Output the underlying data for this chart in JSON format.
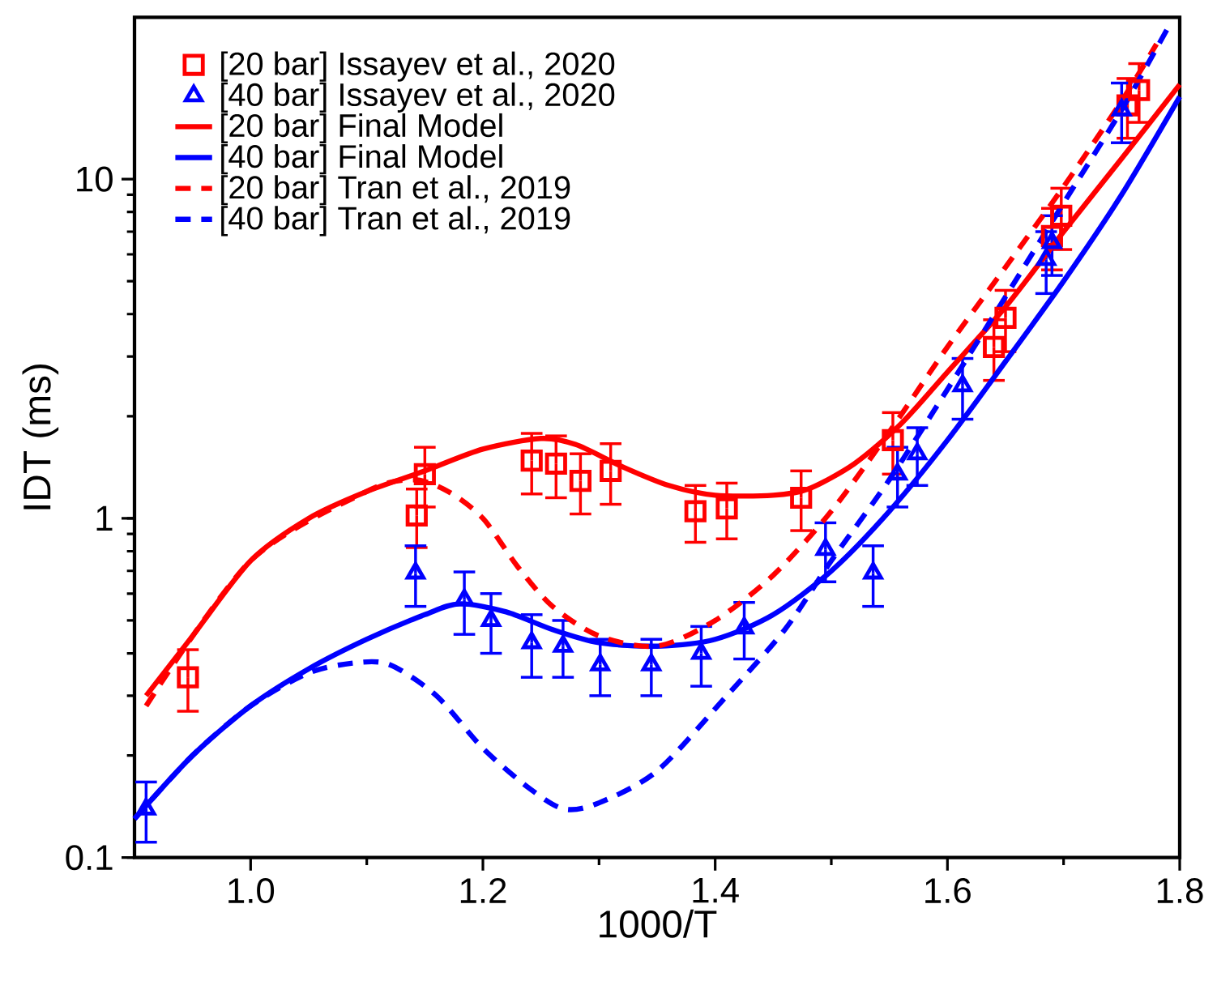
{
  "chart_data": {
    "type": "scatter",
    "xlabel": "1000/T",
    "ylabel": "IDT (ms)",
    "log": "y",
    "xlim": [
      0.9,
      1.8
    ],
    "ylim": [
      0.1,
      30
    ],
    "xticks": [
      {
        "value": 1.0,
        "label": "1.0"
      },
      1.2,
      1.4,
      1.6,
      1.8
    ],
    "yticks": [
      0.1,
      1,
      10
    ],
    "legend": "top left",
    "grid": false,
    "series": [
      {
        "name": "[20 bar] Issayev et al., 2020",
        "marker": "square",
        "color": "#ff0000",
        "x": [
          0.946,
          1.143,
          1.15,
          1.242,
          1.263,
          1.284,
          1.31,
          1.383,
          1.41,
          1.474,
          1.553,
          1.64,
          1.65,
          1.69,
          1.698,
          1.755,
          1.765
        ],
        "values": [
          0.34,
          1.02,
          1.35,
          1.48,
          1.45,
          1.29,
          1.38,
          1.05,
          1.07,
          1.15,
          1.7,
          3.2,
          3.9,
          6.8,
          7.8,
          16.5,
          18.3
        ],
        "errors": [
          0.07,
          0.2,
          0.27,
          0.3,
          0.3,
          0.26,
          0.28,
          0.2,
          0.2,
          0.23,
          0.35,
          0.65,
          0.8,
          1.4,
          1.6,
          3.3,
          3.6
        ]
      },
      {
        "name": "[40 bar] Issayev et al., 2020",
        "marker": "triangle",
        "color": "#0000ff",
        "x": [
          0.91,
          1.142,
          1.184,
          1.207,
          1.242,
          1.269,
          1.301,
          1.345,
          1.388,
          1.425,
          1.495,
          1.536,
          1.557,
          1.574,
          1.613,
          1.685,
          1.69,
          1.747,
          1.75
        ],
        "values": [
          0.139,
          0.69,
          0.575,
          0.5,
          0.43,
          0.42,
          0.37,
          0.37,
          0.4,
          0.475,
          0.81,
          0.69,
          1.35,
          1.55,
          2.46,
          5.8,
          6.5,
          null,
          16
        ],
        "errors": [
          0.028,
          0.14,
          0.12,
          0.1,
          0.09,
          0.08,
          0.07,
          0.07,
          0.08,
          0.09,
          0.16,
          0.14,
          0.27,
          0.3,
          0.5,
          1.2,
          1.3,
          null,
          3.2
        ]
      },
      {
        "name": "[20 bar] Final Model",
        "type": "line",
        "line_style": "solid",
        "color": "#ff0000",
        "x": [
          0.91,
          0.95,
          1.0,
          1.05,
          1.1,
          1.15,
          1.2,
          1.25,
          1.28,
          1.32,
          1.36,
          1.4,
          1.45,
          1.48,
          1.52,
          1.56,
          1.6,
          1.65,
          1.7,
          1.75,
          1.8
        ],
        "values": [
          0.3,
          0.45,
          0.75,
          1.0,
          1.2,
          1.38,
          1.6,
          1.72,
          1.65,
          1.42,
          1.25,
          1.17,
          1.17,
          1.22,
          1.45,
          1.9,
          2.7,
          4.2,
          7.0,
          11.5,
          19
        ]
      },
      {
        "name": "[40 bar] Final Model",
        "type": "line",
        "line_style": "solid",
        "color": "#0000ff",
        "x": [
          0.9,
          0.95,
          1.0,
          1.05,
          1.1,
          1.15,
          1.18,
          1.22,
          1.26,
          1.3,
          1.35,
          1.4,
          1.45,
          1.5,
          1.55,
          1.6,
          1.65,
          1.7,
          1.75,
          1.8
        ],
        "values": [
          0.13,
          0.2,
          0.28,
          0.36,
          0.44,
          0.52,
          0.56,
          0.53,
          0.47,
          0.43,
          0.42,
          0.44,
          0.52,
          0.7,
          1.05,
          1.7,
          2.9,
          5.0,
          9.0,
          17.5
        ]
      },
      {
        "name": "[20 bar] Tran et al., 2019",
        "type": "line",
        "line_style": "dashed",
        "color": "#ff0000",
        "x": [
          0.91,
          1.0,
          1.1,
          1.14,
          1.17,
          1.2,
          1.23,
          1.26,
          1.3,
          1.35,
          1.4,
          1.45,
          1.5,
          1.55,
          1.6,
          1.65,
          1.7,
          1.75,
          1.78
        ],
        "values": [
          0.28,
          0.75,
          1.2,
          1.3,
          1.2,
          1.0,
          0.72,
          0.55,
          0.45,
          0.42,
          0.5,
          0.68,
          1.05,
          1.8,
          3.2,
          5.5,
          9.5,
          17,
          25
        ]
      },
      {
        "name": "[40 bar] Tran et al., 2019",
        "type": "line",
        "line_style": "dashed",
        "color": "#0000ff",
        "x": [
          0.9,
          0.95,
          1.0,
          1.05,
          1.09,
          1.12,
          1.16,
          1.2,
          1.24,
          1.27,
          1.3,
          1.35,
          1.41,
          1.46,
          1.5,
          1.55,
          1.6,
          1.65,
          1.7,
          1.75,
          1.79
        ],
        "values": [
          0.13,
          0.2,
          0.28,
          0.35,
          0.375,
          0.37,
          0.3,
          0.21,
          0.16,
          0.139,
          0.145,
          0.18,
          0.3,
          0.47,
          0.75,
          1.3,
          2.4,
          4.5,
          8.5,
          16,
          28
        ]
      }
    ]
  }
}
